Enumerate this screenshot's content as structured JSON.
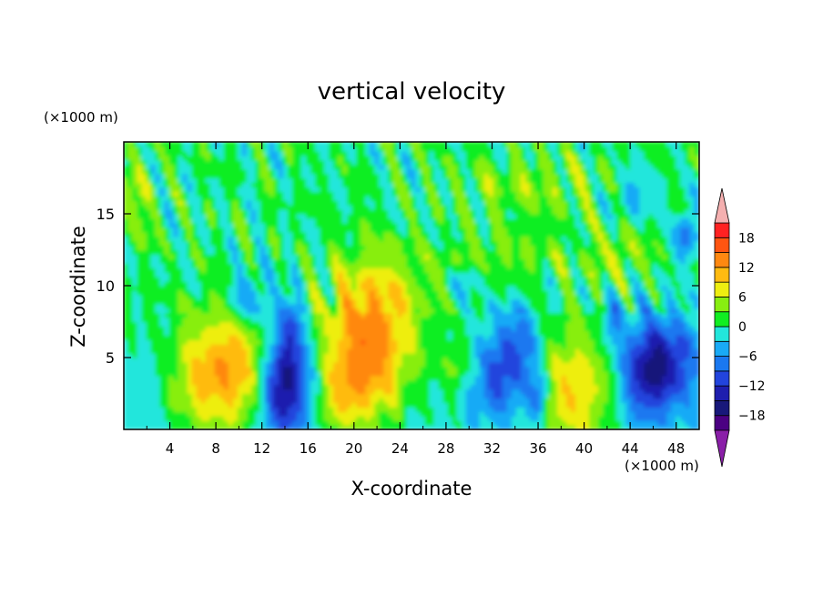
{
  "title": "vertical velocity",
  "chart_data": {
    "type": "heatmap",
    "title": "vertical velocity",
    "xlabel": "X-coordinate",
    "ylabel": "Z-coordinate",
    "x_unit": "(×1000 m)",
    "y_unit": "(×1000 m)",
    "xlim": [
      0,
      50
    ],
    "ylim": [
      0,
      20
    ],
    "x_ticks": [
      4,
      8,
      12,
      16,
      20,
      24,
      28,
      32,
      36,
      40,
      44,
      48
    ],
    "y_ticks": [
      5,
      10,
      15
    ],
    "colorbar": {
      "levels": [
        -21,
        -18,
        -15,
        -12,
        -9,
        -6,
        -3,
        0,
        3,
        6,
        9,
        12,
        15,
        18,
        21
      ],
      "labels": [
        -18,
        -12,
        -6,
        0,
        6,
        12,
        18
      ],
      "colors": [
        "#4b0082",
        "#18187a",
        "#1e1eae",
        "#2244dd",
        "#1a78f0",
        "#19aaf6",
        "#22e6dc",
        "#11ee22",
        "#88ee11",
        "#eeee11",
        "#ffbb11",
        "#ff8811",
        "#ff5511",
        "#ff2222"
      ],
      "under_color": "#8a1fa8",
      "over_color": "#f5b0b0"
    },
    "features": [
      {
        "kind": "updraft",
        "x": 9.5,
        "z": 4,
        "peak": 13
      },
      {
        "kind": "downdraft",
        "x": 14,
        "z": 3,
        "peak": -17
      },
      {
        "kind": "updraft",
        "x": 21,
        "z": 4.5,
        "peak": 13
      },
      {
        "kind": "downdraft",
        "x": 34,
        "z": 5,
        "peak": -11
      },
      {
        "kind": "updraft",
        "x": 39,
        "z": 2.5,
        "peak": 10
      },
      {
        "kind": "downdraft",
        "x": 45.5,
        "z": 4,
        "peak": -12
      }
    ]
  }
}
